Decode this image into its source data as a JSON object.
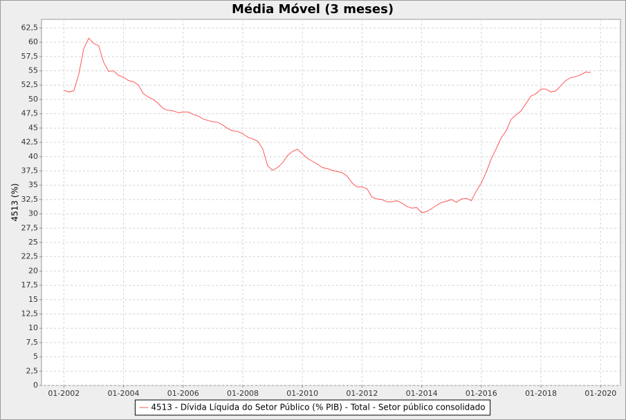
{
  "chart_data": {
    "type": "line",
    "title": "Média Móvel (3 meses)",
    "y_label": "4513 (%)",
    "x": [
      "01-2002",
      "03-2002",
      "05-2002",
      "07-2002",
      "09-2002",
      "11-2002",
      "01-2003",
      "03-2003",
      "05-2003",
      "07-2003",
      "09-2003",
      "11-2003",
      "01-2004",
      "03-2004",
      "05-2004",
      "07-2004",
      "09-2004",
      "11-2004",
      "01-2005",
      "03-2005",
      "05-2005",
      "07-2005",
      "09-2005",
      "11-2005",
      "01-2006",
      "03-2006",
      "05-2006",
      "07-2006",
      "09-2006",
      "11-2006",
      "01-2007",
      "03-2007",
      "05-2007",
      "07-2007",
      "09-2007",
      "11-2007",
      "01-2008",
      "03-2008",
      "05-2008",
      "07-2008",
      "09-2008",
      "11-2008",
      "01-2009",
      "03-2009",
      "05-2009",
      "07-2009",
      "09-2009",
      "11-2009",
      "01-2010",
      "03-2010",
      "05-2010",
      "07-2010",
      "09-2010",
      "11-2010",
      "01-2011",
      "03-2011",
      "05-2011",
      "07-2011",
      "09-2011",
      "11-2011",
      "01-2012",
      "03-2012",
      "05-2012",
      "07-2012",
      "09-2012",
      "11-2012",
      "01-2013",
      "03-2013",
      "05-2013",
      "07-2013",
      "09-2013",
      "11-2013",
      "01-2014",
      "03-2014",
      "05-2014",
      "07-2014",
      "09-2014",
      "11-2014",
      "01-2015",
      "03-2015",
      "05-2015",
      "07-2015",
      "09-2015",
      "11-2015",
      "01-2016",
      "03-2016",
      "05-2016",
      "07-2016",
      "09-2016",
      "11-2016",
      "01-2017",
      "03-2017",
      "05-2017",
      "07-2017",
      "09-2017",
      "11-2017",
      "01-2018",
      "03-2018",
      "05-2018",
      "07-2018",
      "09-2018",
      "11-2018",
      "01-2019",
      "03-2019",
      "05-2019",
      "07-2019",
      "09-2019"
    ],
    "series": [
      {
        "name": "4513 - Dívida Líquida do Setor Público (% PIB) - Total - Setor público consolidado",
        "color": "#ff5555",
        "values": [
          51.6,
          51.3,
          51.5,
          54.4,
          58.9,
          60.7,
          59.8,
          59.4,
          56.5,
          54.9,
          55.0,
          54.2,
          53.9,
          53.3,
          53.1,
          52.5,
          51.0,
          50.4,
          50.0,
          49.3,
          48.4,
          48.1,
          48.0,
          47.7,
          47.8,
          47.8,
          47.4,
          47.1,
          46.6,
          46.3,
          46.1,
          46.0,
          45.5,
          44.9,
          44.5,
          44.4,
          44.0,
          43.4,
          43.1,
          42.7,
          41.4,
          38.4,
          37.6,
          38.1,
          38.9,
          40.2,
          40.9,
          41.3,
          40.5,
          39.7,
          39.2,
          38.7,
          38.1,
          37.9,
          37.6,
          37.4,
          37.2,
          36.6,
          35.4,
          34.7,
          34.7,
          34.4,
          32.9,
          32.6,
          32.5,
          32.1,
          32.1,
          32.3,
          31.9,
          31.3,
          31.0,
          31.1,
          30.2,
          30.4,
          30.9,
          31.5,
          32.0,
          32.2,
          32.5,
          32.0,
          32.6,
          32.7,
          32.3,
          34.0,
          35.4,
          37.3,
          39.6,
          41.4,
          43.3,
          44.5,
          46.5,
          47.3,
          48.0,
          49.3,
          50.6,
          51.0,
          51.8,
          51.8,
          51.3,
          51.5,
          52.4,
          53.3,
          53.8,
          54.0,
          54.3,
          54.8,
          54.7
        ]
      }
    ],
    "xlim": [
      "04-2001",
      "09-2020"
    ],
    "xticks": [
      "01-2002",
      "01-2004",
      "01-2006",
      "01-2008",
      "01-2010",
      "01-2012",
      "01-2014",
      "01-2016",
      "01-2018",
      "01-2020"
    ],
    "ylim": [
      0,
      64
    ],
    "yticks": [
      0,
      {
        "value": 2.5,
        "label": "2,5"
      },
      5,
      {
        "value": 7.5,
        "label": "7,5"
      },
      10,
      {
        "value": 12.5,
        "label": "12,5"
      },
      15,
      {
        "value": 17.5,
        "label": "17,5"
      },
      20,
      {
        "value": 22.5,
        "label": "22,5"
      },
      25,
      {
        "value": 27.5,
        "label": "27,5"
      },
      30,
      {
        "value": 32.5,
        "label": "32,5"
      },
      35,
      {
        "value": 37.5,
        "label": "37,5"
      },
      40,
      {
        "value": 42.5,
        "label": "42,5"
      },
      45,
      {
        "value": 47.5,
        "label": "47,5"
      },
      50,
      {
        "value": 52.5,
        "label": "52,5"
      },
      55,
      {
        "value": 57.5,
        "label": "57,5"
      },
      60,
      {
        "value": 62.5,
        "label": "62,5"
      }
    ],
    "grid": true,
    "legend": "bottom"
  }
}
